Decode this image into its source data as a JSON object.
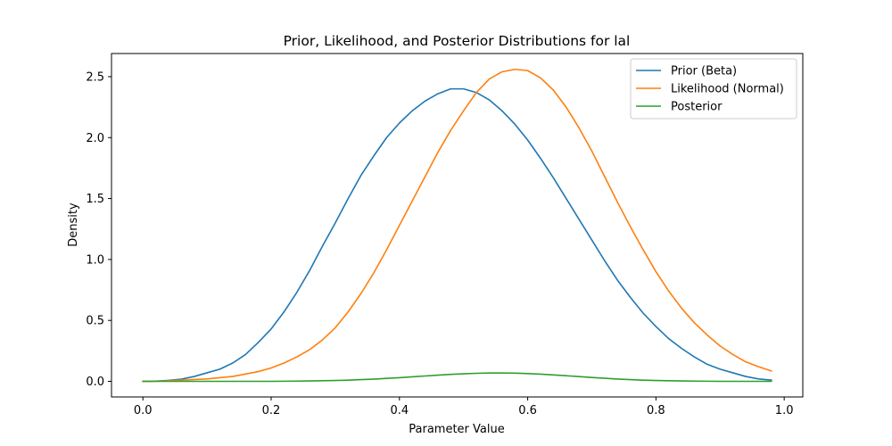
{
  "chart_data": {
    "type": "line",
    "title": "Prior, Likelihood, and Posterior Distributions for lal",
    "xlabel": "Parameter Value",
    "ylabel": "Density",
    "xlim": [
      -0.049,
      1.029
    ],
    "ylim": [
      -0.128,
      2.69
    ],
    "xticks": [
      0.0,
      0.2,
      0.4,
      0.6,
      0.8,
      1.0
    ],
    "xtick_labels": [
      "0.0",
      "0.2",
      "0.4",
      "0.6",
      "0.8",
      "1.0"
    ],
    "yticks": [
      0.0,
      0.5,
      1.0,
      1.5,
      2.0,
      2.5
    ],
    "ytick_labels": [
      "0.0",
      "0.5",
      "1.0",
      "1.5",
      "2.0",
      "2.5"
    ],
    "grid": false,
    "legend_position": "top-right",
    "x": [
      0.0,
      0.02,
      0.04,
      0.06,
      0.08,
      0.1,
      0.12,
      0.14,
      0.16,
      0.18,
      0.2,
      0.22,
      0.24,
      0.26,
      0.28,
      0.3,
      0.32,
      0.34,
      0.36,
      0.38,
      0.4,
      0.42,
      0.44,
      0.46,
      0.48,
      0.5,
      0.52,
      0.54,
      0.56,
      0.58,
      0.6,
      0.62,
      0.64,
      0.66,
      0.68,
      0.7,
      0.72,
      0.74,
      0.76,
      0.78,
      0.8,
      0.82,
      0.84,
      0.86,
      0.88,
      0.9,
      0.92,
      0.94,
      0.96,
      0.98
    ],
    "series": [
      {
        "name": "Prior (Beta)",
        "color": "#1f77b4",
        "values": [
          0.0,
          0.002,
          0.008,
          0.018,
          0.04,
          0.07,
          0.1,
          0.15,
          0.22,
          0.32,
          0.43,
          0.57,
          0.73,
          0.91,
          1.11,
          1.3,
          1.5,
          1.69,
          1.85,
          2.0,
          2.12,
          2.22,
          2.3,
          2.36,
          2.4,
          2.4,
          2.37,
          2.31,
          2.22,
          2.11,
          1.98,
          1.83,
          1.67,
          1.5,
          1.33,
          1.16,
          0.99,
          0.83,
          0.69,
          0.56,
          0.45,
          0.35,
          0.27,
          0.2,
          0.14,
          0.1,
          0.07,
          0.04,
          0.02,
          0.01
        ]
      },
      {
        "name": "Likelihood (Normal)",
        "color": "#ff7f0e",
        "values": [
          0.0,
          0.0,
          0.005,
          0.01,
          0.015,
          0.02,
          0.03,
          0.04,
          0.06,
          0.08,
          0.11,
          0.15,
          0.2,
          0.26,
          0.34,
          0.44,
          0.57,
          0.72,
          0.89,
          1.08,
          1.28,
          1.48,
          1.68,
          1.88,
          2.06,
          2.22,
          2.37,
          2.48,
          2.54,
          2.56,
          2.55,
          2.49,
          2.39,
          2.25,
          2.08,
          1.89,
          1.68,
          1.47,
          1.27,
          1.08,
          0.9,
          0.74,
          0.6,
          0.48,
          0.38,
          0.29,
          0.22,
          0.16,
          0.12,
          0.085
        ]
      },
      {
        "name": "Posterior",
        "color": "#2ca02c",
        "values": [
          0.0,
          0.0,
          0.0,
          0.0,
          0.0,
          0.0,
          0.0,
          0.0,
          0.0,
          0.0,
          0.0,
          0.001,
          0.002,
          0.003,
          0.005,
          0.007,
          0.01,
          0.014,
          0.018,
          0.024,
          0.03,
          0.037,
          0.044,
          0.051,
          0.057,
          0.062,
          0.066,
          0.068,
          0.068,
          0.067,
          0.064,
          0.059,
          0.053,
          0.046,
          0.039,
          0.032,
          0.025,
          0.019,
          0.014,
          0.01,
          0.007,
          0.005,
          0.003,
          0.002,
          0.001,
          0.0,
          0.0,
          0.0,
          0.0,
          0.0
        ]
      }
    ]
  }
}
